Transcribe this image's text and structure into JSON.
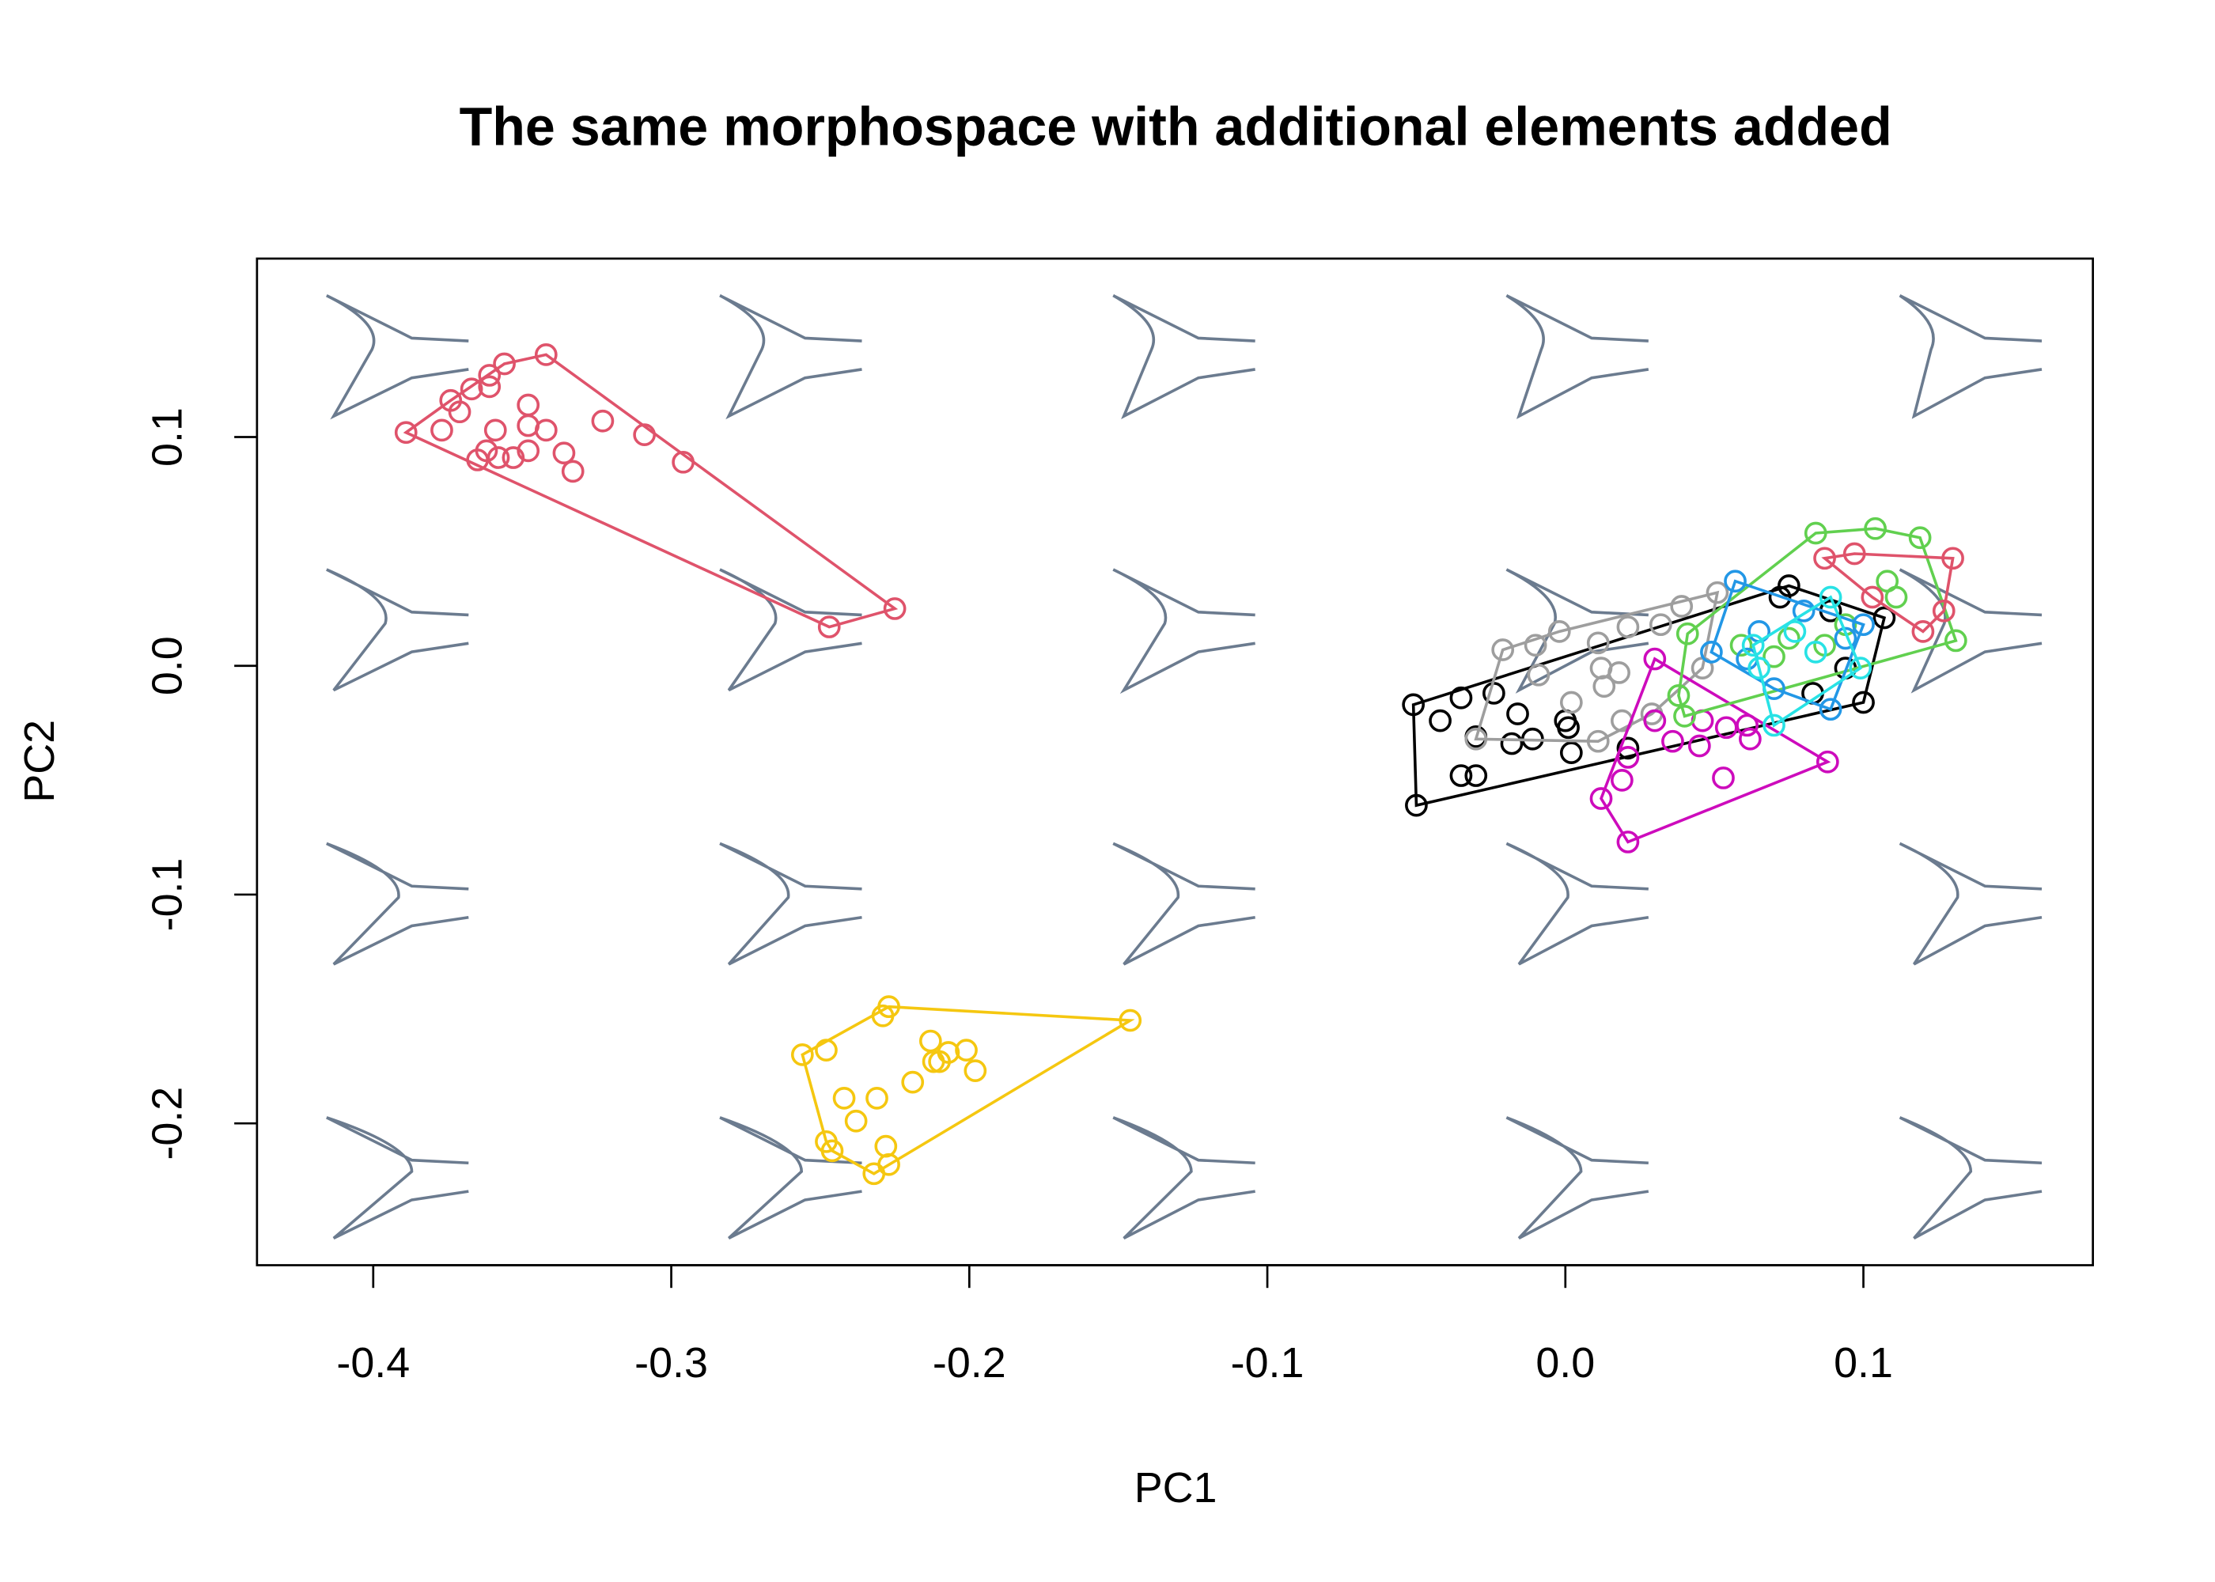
{
  "chart_data": {
    "type": "scatter",
    "title": "The same morphospace with additional elements added",
    "x_label": "PC1",
    "y_label": "PC2",
    "xlim": [
      -0.439,
      0.177
    ],
    "ylim": [
      -0.262,
      0.178
    ],
    "xticks": [
      -0.4,
      -0.3,
      -0.2,
      -0.1,
      {
        "value": 0,
        "label": "0.0"
      },
      0.1
    ],
    "yticks": [
      -0.2,
      -0.1,
      {
        "value": 0,
        "label": "0.0"
      },
      0.1
    ],
    "hulls": true,
    "series": [
      {
        "color": "#DF536B",
        "x": [
          -0.389,
          -0.342,
          -0.356,
          -0.361,
          -0.361,
          -0.367,
          -0.374,
          -0.371,
          -0.377,
          -0.359,
          -0.348,
          -0.348,
          -0.342,
          -0.336,
          -0.348,
          -0.353,
          -0.362,
          -0.365,
          -0.358,
          -0.333,
          -0.323,
          -0.309,
          -0.296,
          -0.247,
          -0.225
        ],
        "y": [
          0.102,
          0.136,
          0.132,
          0.127,
          0.122,
          0.121,
          0.116,
          0.111,
          0.103,
          0.103,
          0.114,
          0.105,
          0.103,
          0.093,
          0.094,
          0.091,
          0.094,
          0.09,
          0.091,
          0.085,
          0.107,
          0.101,
          0.089,
          0.017,
          0.025
        ]
      },
      {
        "color": "#F5C710",
        "x": [
          -0.146,
          -0.227,
          -0.229,
          -0.256,
          -0.248,
          -0.213,
          -0.207,
          -0.212,
          -0.21,
          -0.201,
          -0.198,
          -0.219,
          -0.242,
          -0.231,
          -0.238,
          -0.248,
          -0.246,
          -0.228,
          -0.227,
          -0.232
        ],
        "y": [
          -0.155,
          -0.149,
          -0.153,
          -0.17,
          -0.168,
          -0.164,
          -0.169,
          -0.173,
          -0.173,
          -0.168,
          -0.177,
          -0.182,
          -0.189,
          -0.189,
          -0.199,
          -0.208,
          -0.212,
          -0.21,
          -0.218,
          -0.222
        ]
      },
      {
        "color": "#000000",
        "x": [
          -0.05,
          -0.051,
          -0.035,
          -0.024,
          -0.042,
          -0.03,
          -0.016,
          -0.011,
          -0.018,
          0.0,
          0.001,
          0.021,
          -0.035,
          -0.03,
          0.002,
          0.075,
          0.083,
          0.1,
          0.107,
          0.072,
          0.089,
          0.094
        ],
        "y": [
          -0.061,
          -0.017,
          -0.014,
          -0.012,
          -0.024,
          -0.031,
          -0.021,
          -0.032,
          -0.034,
          -0.024,
          -0.027,
          -0.036,
          -0.048,
          -0.048,
          -0.038,
          0.035,
          -0.012,
          -0.016,
          0.021,
          0.03,
          0.024,
          -0.001
        ]
      },
      {
        "color": "#9E9E9E",
        "x": [
          -0.021,
          -0.01,
          -0.002,
          0.011,
          0.021,
          0.032,
          0.039,
          0.051,
          -0.009,
          0.012,
          0.018,
          0.013,
          0.002,
          -0.03,
          0.011,
          0.019,
          0.029,
          0.046
        ],
        "y": [
          0.007,
          0.009,
          0.015,
          0.01,
          0.017,
          0.018,
          0.026,
          0.032,
          -0.004,
          -0.001,
          -0.003,
          -0.009,
          -0.016,
          -0.032,
          -0.033,
          -0.024,
          -0.021,
          -0.001
        ]
      },
      {
        "color": "#CD0BBC",
        "x": [
          0.03,
          0.021,
          0.012,
          0.019,
          0.021,
          0.03,
          0.036,
          0.045,
          0.054,
          0.053,
          0.062,
          0.088,
          0.046,
          0.061
        ],
        "y": [
          0.003,
          -0.04,
          -0.058,
          -0.05,
          -0.077,
          -0.024,
          -0.033,
          -0.035,
          -0.027,
          -0.049,
          -0.032,
          -0.042,
          -0.024,
          -0.026
        ]
      },
      {
        "color": "#61D04F",
        "x": [
          0.084,
          0.104,
          0.119,
          0.131,
          0.04,
          0.038,
          0.041,
          0.059,
          0.075,
          0.094,
          0.111,
          0.108,
          0.087,
          0.07
        ],
        "y": [
          0.058,
          0.06,
          0.056,
          0.011,
          -0.022,
          -0.013,
          0.014,
          0.009,
          0.012,
          0.018,
          0.03,
          0.037,
          0.009,
          0.004
        ]
      },
      {
        "color": "#2297E6",
        "x": [
          0.057,
          0.089,
          0.1,
          0.049,
          0.07,
          0.061,
          0.08,
          0.094,
          0.065
        ],
        "y": [
          0.037,
          -0.019,
          0.018,
          0.006,
          -0.01,
          0.003,
          0.024,
          0.012,
          0.015
        ]
      },
      {
        "color": "#28E2E5",
        "x": [
          0.07,
          0.099,
          0.063,
          0.077,
          0.089,
          0.065,
          0.084
        ],
        "y": [
          -0.026,
          -0.001,
          0.009,
          0.015,
          0.03,
          -0.001,
          0.006
        ]
      },
      {
        "color": "#DF536B",
        "x": [
          0.13,
          0.097,
          0.087,
          0.127,
          0.12,
          0.103
        ],
        "y": [
          0.047,
          0.049,
          0.047,
          0.024,
          0.015,
          0.03
        ]
      }
    ]
  }
}
